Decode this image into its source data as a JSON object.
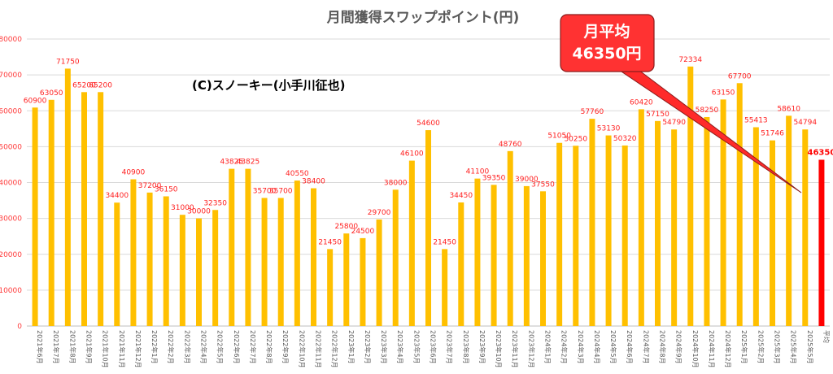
{
  "chart_data": {
    "type": "bar",
    "title": "月間獲得スワップポイント(円)",
    "credit": "(C)スノーキー(小手川征也)",
    "ylim": [
      0,
      80000
    ],
    "yticks": [
      0,
      10000,
      20000,
      30000,
      40000,
      50000,
      60000,
      70000,
      80000
    ],
    "categories": [
      "2021年6月",
      "2021年7月",
      "2021年8月",
      "2021年9月",
      "2021年10月",
      "2021年11月",
      "2021年12月",
      "2022年1月",
      "2022年2月",
      "2022年3月",
      "2022年4月",
      "2022年5月",
      "2022年6月",
      "2022年7月",
      "2022年8月",
      "2022年9月",
      "2022年10月",
      "2022年11月",
      "2022年12月",
      "2023年1月",
      "2023年2月",
      "2023年3月",
      "2023年4月",
      "2023年5月",
      "2023年6月",
      "2023年7月",
      "2023年8月",
      "2023年9月",
      "2023年10月",
      "2023年11月",
      "2023年12月",
      "2024年1月",
      "2024年2月",
      "2024年3月",
      "2024年4月",
      "2024年5月",
      "2024年6月",
      "2024年7月",
      "2024年8月",
      "2024年9月",
      "2024年10月",
      "2024年11月",
      "2024年12月",
      "2025年1月",
      "2025年2月",
      "2025年3月",
      "2025年4月",
      "2025年5月",
      "平均"
    ],
    "values": [
      60900,
      63050,
      71750,
      65200,
      65200,
      34400,
      40900,
      37200,
      36150,
      31000,
      30000,
      32350,
      43825,
      43825,
      35700,
      35700,
      40550,
      38400,
      21450,
      25800,
      24500,
      29700,
      38000,
      46100,
      54600,
      21450,
      34450,
      41100,
      39350,
      48760,
      39000,
      37550,
      51050,
      50250,
      57760,
      53130,
      50320,
      60420,
      57150,
      54790,
      72334,
      58250,
      63150,
      67700,
      55413,
      51746,
      58610,
      54794,
      46350
    ],
    "bar_color": "#ffc000",
    "average_bar_color": "#ff0000",
    "callout": {
      "line1": "月平均",
      "line2": "46350円"
    }
  }
}
